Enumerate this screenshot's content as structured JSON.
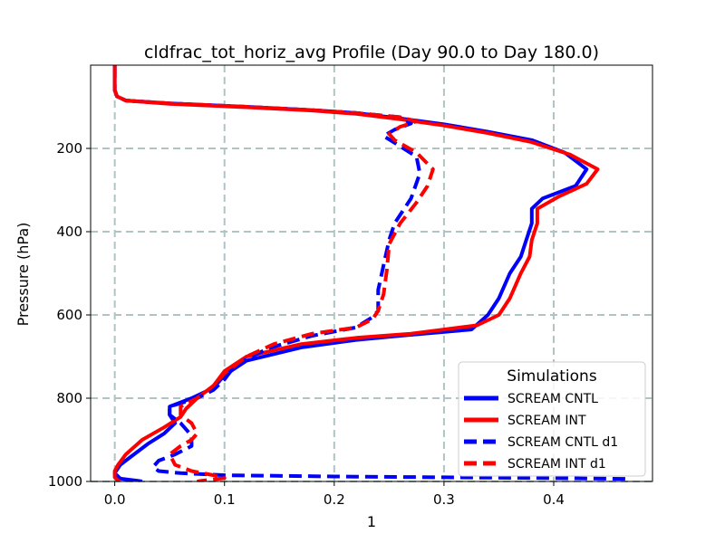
{
  "chart_data": {
    "type": "line",
    "title": "cldfrac_tot_horiz_avg Profile (Day 90.0 to Day 180.0)",
    "xlabel": "1",
    "ylabel": "Pressure (hPa)",
    "xlim": [
      -0.022,
      0.49
    ],
    "ylim": [
      1000,
      0
    ],
    "y_inverted": true,
    "xticks": [
      0.0,
      0.1,
      0.2,
      0.3,
      0.4
    ],
    "xtick_labels": [
      "0.0",
      "0.1",
      "0.2",
      "0.3",
      "0.4"
    ],
    "yticks": [
      200,
      400,
      600,
      800,
      1000
    ],
    "ytick_labels": [
      "200",
      "400",
      "600",
      "800",
      "1000"
    ],
    "grid": true,
    "legend": {
      "title": "Simulations",
      "position": "lower-right"
    },
    "series": [
      {
        "name": "SCREAM CNTL",
        "color": "#0000ff",
        "style": "solid",
        "points": [
          [
            0.0,
            0
          ],
          [
            0.0,
            60
          ],
          [
            0.002,
            75
          ],
          [
            0.01,
            85
          ],
          [
            0.05,
            92
          ],
          [
            0.12,
            100
          ],
          [
            0.18,
            108
          ],
          [
            0.22,
            115
          ],
          [
            0.26,
            128
          ],
          [
            0.3,
            142
          ],
          [
            0.34,
            160
          ],
          [
            0.38,
            180
          ],
          [
            0.41,
            210
          ],
          [
            0.43,
            250
          ],
          [
            0.42,
            290
          ],
          [
            0.39,
            320
          ],
          [
            0.38,
            345
          ],
          [
            0.38,
            380
          ],
          [
            0.375,
            420
          ],
          [
            0.37,
            460
          ],
          [
            0.36,
            500
          ],
          [
            0.35,
            560
          ],
          [
            0.34,
            600
          ],
          [
            0.325,
            635
          ],
          [
            0.26,
            650
          ],
          [
            0.22,
            660
          ],
          [
            0.17,
            678
          ],
          [
            0.12,
            710
          ],
          [
            0.1,
            745
          ],
          [
            0.09,
            775
          ],
          [
            0.07,
            800
          ],
          [
            0.05,
            820
          ],
          [
            0.05,
            840
          ],
          [
            0.055,
            860
          ],
          [
            0.045,
            885
          ],
          [
            0.03,
            910
          ],
          [
            0.015,
            940
          ],
          [
            0.005,
            960
          ],
          [
            0.0,
            980
          ],
          [
            0.005,
            993
          ],
          [
            0.02,
            998
          ],
          [
            0.025,
            1000
          ]
        ]
      },
      {
        "name": "SCREAM INT",
        "color": "#ff0000",
        "style": "solid",
        "points": [
          [
            0.0,
            0
          ],
          [
            0.0,
            60
          ],
          [
            0.002,
            75
          ],
          [
            0.01,
            85
          ],
          [
            0.05,
            93
          ],
          [
            0.12,
            101
          ],
          [
            0.18,
            109
          ],
          [
            0.22,
            117
          ],
          [
            0.26,
            130
          ],
          [
            0.3,
            145
          ],
          [
            0.34,
            163
          ],
          [
            0.38,
            185
          ],
          [
            0.415,
            215
          ],
          [
            0.44,
            250
          ],
          [
            0.43,
            285
          ],
          [
            0.405,
            315
          ],
          [
            0.385,
            345
          ],
          [
            0.385,
            380
          ],
          [
            0.38,
            420
          ],
          [
            0.378,
            460
          ],
          [
            0.37,
            500
          ],
          [
            0.36,
            560
          ],
          [
            0.35,
            600
          ],
          [
            0.33,
            625
          ],
          [
            0.27,
            645
          ],
          [
            0.22,
            655
          ],
          [
            0.17,
            670
          ],
          [
            0.12,
            700
          ],
          [
            0.1,
            735
          ],
          [
            0.09,
            770
          ],
          [
            0.075,
            800
          ],
          [
            0.065,
            825
          ],
          [
            0.06,
            845
          ],
          [
            0.045,
            870
          ],
          [
            0.025,
            900
          ],
          [
            0.01,
            935
          ],
          [
            0.003,
            960
          ],
          [
            0.0,
            975
          ],
          [
            0.0,
            990
          ],
          [
            0.004,
            1000
          ]
        ]
      },
      {
        "name": "SCREAM CNTL d1",
        "color": "#0000ff",
        "style": "dashed",
        "points": [
          [
            0.0,
            0
          ],
          [
            0.0,
            60
          ],
          [
            0.002,
            75
          ],
          [
            0.01,
            85
          ],
          [
            0.05,
            92
          ],
          [
            0.12,
            100
          ],
          [
            0.18,
            108
          ],
          [
            0.22,
            115
          ],
          [
            0.26,
            125
          ],
          [
            0.27,
            140
          ],
          [
            0.255,
            155
          ],
          [
            0.245,
            170
          ],
          [
            0.26,
            195
          ],
          [
            0.275,
            220
          ],
          [
            0.278,
            260
          ],
          [
            0.27,
            320
          ],
          [
            0.255,
            380
          ],
          [
            0.25,
            420
          ],
          [
            0.245,
            480
          ],
          [
            0.24,
            540
          ],
          [
            0.24,
            590
          ],
          [
            0.235,
            605
          ],
          [
            0.22,
            630
          ],
          [
            0.18,
            650
          ],
          [
            0.14,
            680
          ],
          [
            0.11,
            720
          ],
          [
            0.1,
            755
          ],
          [
            0.09,
            780
          ],
          [
            0.075,
            800
          ],
          [
            0.05,
            820
          ],
          [
            0.05,
            840
          ],
          [
            0.06,
            860
          ],
          [
            0.07,
            890
          ],
          [
            0.07,
            915
          ],
          [
            0.055,
            935
          ],
          [
            0.04,
            950
          ],
          [
            0.035,
            965
          ],
          [
            0.04,
            975
          ],
          [
            0.06,
            980
          ],
          [
            0.1,
            985
          ],
          [
            0.2,
            988
          ],
          [
            0.3,
            990
          ],
          [
            0.4,
            992
          ],
          [
            0.47,
            994
          ]
        ]
      },
      {
        "name": "SCREAM INT d1",
        "color": "#ff0000",
        "style": "dashed",
        "points": [
          [
            0.0,
            0
          ],
          [
            0.0,
            60
          ],
          [
            0.002,
            75
          ],
          [
            0.01,
            85
          ],
          [
            0.05,
            92
          ],
          [
            0.12,
            100
          ],
          [
            0.18,
            108
          ],
          [
            0.22,
            115
          ],
          [
            0.26,
            125
          ],
          [
            0.275,
            135
          ],
          [
            0.26,
            148
          ],
          [
            0.25,
            165
          ],
          [
            0.255,
            180
          ],
          [
            0.275,
            210
          ],
          [
            0.29,
            250
          ],
          [
            0.285,
            290
          ],
          [
            0.275,
            330
          ],
          [
            0.26,
            380
          ],
          [
            0.25,
            430
          ],
          [
            0.248,
            490
          ],
          [
            0.245,
            550
          ],
          [
            0.24,
            590
          ],
          [
            0.235,
            610
          ],
          [
            0.22,
            630
          ],
          [
            0.18,
            645
          ],
          [
            0.145,
            670
          ],
          [
            0.12,
            700
          ],
          [
            0.1,
            740
          ],
          [
            0.09,
            770
          ],
          [
            0.075,
            800
          ],
          [
            0.06,
            820
          ],
          [
            0.06,
            840
          ],
          [
            0.07,
            860
          ],
          [
            0.075,
            885
          ],
          [
            0.07,
            900
          ],
          [
            0.06,
            915
          ],
          [
            0.05,
            935
          ],
          [
            0.055,
            960
          ],
          [
            0.07,
            975
          ],
          [
            0.09,
            985
          ],
          [
            0.1,
            992
          ],
          [
            0.08,
            998
          ],
          [
            0.075,
            1000
          ]
        ]
      }
    ]
  }
}
